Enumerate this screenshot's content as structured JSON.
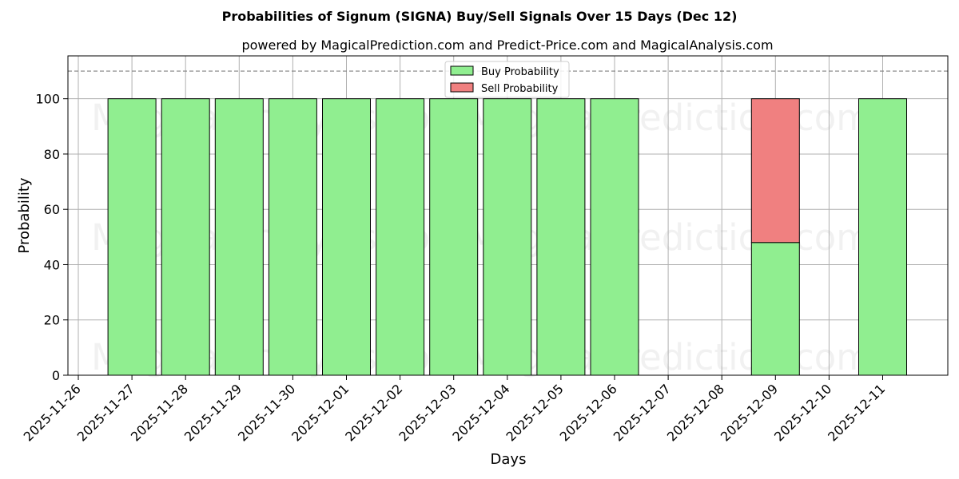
{
  "chart_data": {
    "type": "bar",
    "stacked": true,
    "title": "Probabilities of Signum (SIGNA) Buy/Sell Signals Over 15 Days (Dec 12)",
    "subtitle": "powered by MagicalPrediction.com and Predict-Price.com and MagicalAnalysis.com",
    "xlabel": "Days",
    "ylabel": "Probability",
    "x_tick_labels": [
      "2025-11-26",
      "2025-11-27",
      "2025-11-28",
      "2025-11-29",
      "2025-11-30",
      "2025-12-01",
      "2025-12-02",
      "2025-12-03",
      "2025-12-04",
      "2025-12-05",
      "2025-12-06",
      "2025-12-07",
      "2025-12-08",
      "2025-12-09",
      "2025-12-10",
      "2025-12-11"
    ],
    "y_ticks": [
      0,
      20,
      40,
      60,
      80,
      100
    ],
    "ylim": [
      0,
      115.5
    ],
    "reference_line": 110,
    "grid": true,
    "legend_position": "top-center",
    "series": [
      {
        "name": "Buy Probability",
        "color": "#90EE90",
        "points": [
          {
            "date": "2025-11-27",
            "value": 100
          },
          {
            "date": "2025-11-28",
            "value": 100
          },
          {
            "date": "2025-11-29",
            "value": 100
          },
          {
            "date": "2025-11-30",
            "value": 100
          },
          {
            "date": "2025-12-01",
            "value": 100
          },
          {
            "date": "2025-12-02",
            "value": 100
          },
          {
            "date": "2025-12-03",
            "value": 100
          },
          {
            "date": "2025-12-04",
            "value": 100
          },
          {
            "date": "2025-12-05",
            "value": 100
          },
          {
            "date": "2025-12-06",
            "value": 100
          },
          {
            "date": "2025-12-09",
            "value": 48
          },
          {
            "date": "2025-12-11",
            "value": 100
          }
        ]
      },
      {
        "name": "Sell Probability",
        "color": "#F08080",
        "points": [
          {
            "date": "2025-11-27",
            "value": 0
          },
          {
            "date": "2025-11-28",
            "value": 0
          },
          {
            "date": "2025-11-29",
            "value": 0
          },
          {
            "date": "2025-11-30",
            "value": 0
          },
          {
            "date": "2025-12-01",
            "value": 0
          },
          {
            "date": "2025-12-02",
            "value": 0
          },
          {
            "date": "2025-12-03",
            "value": 0
          },
          {
            "date": "2025-12-04",
            "value": 0
          },
          {
            "date": "2025-12-05",
            "value": 0
          },
          {
            "date": "2025-12-06",
            "value": 0
          },
          {
            "date": "2025-12-09",
            "value": 52
          },
          {
            "date": "2025-12-11",
            "value": 0
          }
        ]
      }
    ]
  },
  "watermarks": {
    "left": "MagicalAnalysis.com",
    "right": "MagicalPrediction.com"
  }
}
